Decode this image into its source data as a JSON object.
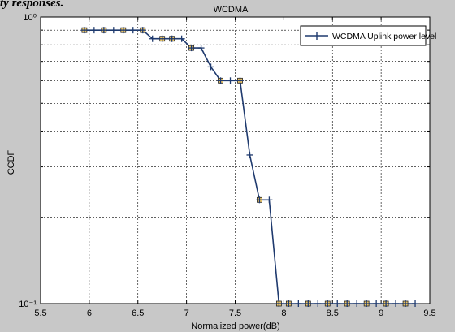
{
  "caption_fragment": "ty responses.",
  "chart_data": {
    "type": "line",
    "title": "WCDMA",
    "xlabel": "Normalized power(dB)",
    "ylabel": "CCDF",
    "xlim": [
      5.5,
      9.5
    ],
    "ylim": [
      0.1,
      1
    ],
    "yscale": "log",
    "xticks": [
      5.5,
      6,
      6.5,
      7,
      7.5,
      8,
      8.5,
      9,
      9.5
    ],
    "xtick_labels": [
      "5.5",
      "6",
      "6.5",
      "7",
      "7.5",
      "8",
      "8.5",
      "9",
      "9.5"
    ],
    "yticks": [
      0.1,
      1
    ],
    "ytick_labels": [
      "10⁻¹",
      "10⁰"
    ],
    "grid": true,
    "legend_position": "top-right",
    "series": [
      {
        "name": "WCDMA Uplink power level",
        "color": "#1f3a6e",
        "x": [
          5.95,
          6.05,
          6.15,
          6.25,
          6.35,
          6.45,
          6.55,
          6.65,
          6.75,
          6.85,
          6.95,
          7.05,
          7.15,
          7.25,
          7.35,
          7.45,
          7.55,
          7.65,
          7.75,
          7.85,
          7.95,
          8.05,
          8.15,
          8.25,
          8.35,
          8.45,
          8.55,
          8.65,
          8.75,
          8.85,
          8.95,
          9.05,
          9.15,
          9.25,
          9.35
        ],
        "y": [
          0.9,
          0.9,
          0.9,
          0.9,
          0.9,
          0.9,
          0.9,
          0.84,
          0.84,
          0.84,
          0.84,
          0.78,
          0.78,
          0.67,
          0.6,
          0.6,
          0.6,
          0.33,
          0.23,
          0.23,
          0.1,
          0.1,
          0.1,
          0.1,
          0.1,
          0.1,
          0.1,
          0.1,
          0.1,
          0.1,
          0.1,
          0.1,
          0.1,
          0.1,
          0.1
        ],
        "highlight_x": [
          5.95,
          6.15,
          6.35,
          6.55,
          6.75,
          6.85,
          7.05,
          7.35,
          7.55,
          7.75,
          7.95,
          8.05,
          8.25,
          8.45,
          8.65,
          8.85,
          9.05,
          9.25
        ]
      }
    ]
  }
}
